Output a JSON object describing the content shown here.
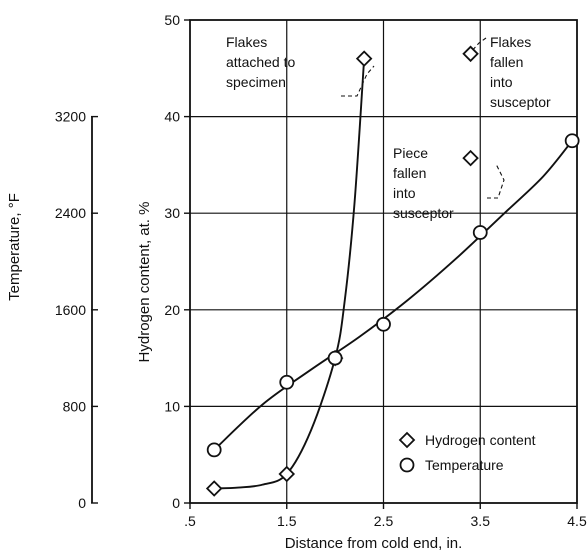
{
  "chart_data": {
    "type": "line",
    "x_axis": {
      "label": "Distance from cold end,  in.",
      "range": [
        0.5,
        4.5
      ],
      "ticks": [
        0.5,
        1.5,
        2.5,
        3.5,
        4.5
      ],
      "tick_labels": [
        ".5",
        "1.5",
        "2.5",
        "3.5",
        "4.5"
      ]
    },
    "y_axis": {
      "label": "Hydrogen content,  at. %",
      "range": [
        0,
        50
      ],
      "ticks": [
        0,
        10,
        20,
        30,
        40,
        50
      ],
      "tick_labels": [
        "0",
        "10",
        "20",
        "30",
        "40",
        "50"
      ]
    },
    "secondary_y_axis": {
      "label": "Temperature,  °F",
      "range": [
        0,
        3200
      ],
      "ticks": [
        0,
        800,
        1600,
        2400,
        3200
      ],
      "tick_labels": [
        "0",
        "800",
        "1600",
        "2400",
        "3200"
      ]
    },
    "grid": true,
    "legend_placement": "bottom-right",
    "series": [
      {
        "name": "Hydrogen content",
        "marker": "diamond",
        "points": [
          {
            "x": 0.75,
            "y": 1.5
          },
          {
            "x": 1.5,
            "y": 3.0
          },
          {
            "x": 2.0,
            "y": 15.0
          },
          {
            "x": 2.3,
            "y": 46.0
          },
          {
            "x": 3.4,
            "y": 35.7
          },
          {
            "x": 3.4,
            "y": 46.5
          }
        ],
        "curve_x": [
          0.75,
          1.0,
          1.25,
          1.5,
          1.75,
          2.0,
          2.1,
          2.2,
          2.3
        ],
        "curve_y": [
          1.5,
          1.6,
          1.9,
          3.0,
          7.5,
          15.0,
          21.0,
          31.0,
          46.0
        ]
      },
      {
        "name": "Temperature",
        "marker": "circle",
        "points": [
          {
            "x": 0.75,
            "y": 5.5
          },
          {
            "x": 1.5,
            "y": 12.5
          },
          {
            "x": 2.0,
            "y": 15.0
          },
          {
            "x": 2.5,
            "y": 18.5
          },
          {
            "x": 3.5,
            "y": 28.0
          },
          {
            "x": 4.45,
            "y": 37.5
          }
        ],
        "curve_x": [
          0.75,
          1.25,
          1.75,
          2.25,
          2.75,
          3.25,
          3.75,
          4.15,
          4.45
        ],
        "curve_y": [
          5.5,
          10.2,
          13.8,
          17.2,
          21.0,
          25.3,
          30.0,
          33.8,
          37.5
        ]
      }
    ],
    "annotations": [
      {
        "lines": [
          "Flakes",
          "attached to",
          "specimen"
        ],
        "target": {
          "x": 2.3,
          "y": 46.0
        }
      },
      {
        "lines": [
          "Piece",
          "fallen",
          "into",
          "susceptor"
        ],
        "target": {
          "x": 3.4,
          "y": 35.7
        }
      },
      {
        "lines": [
          "Flakes",
          "fallen",
          "into",
          "susceptor"
        ],
        "target": {
          "x": 3.4,
          "y": 46.5
        }
      }
    ]
  }
}
